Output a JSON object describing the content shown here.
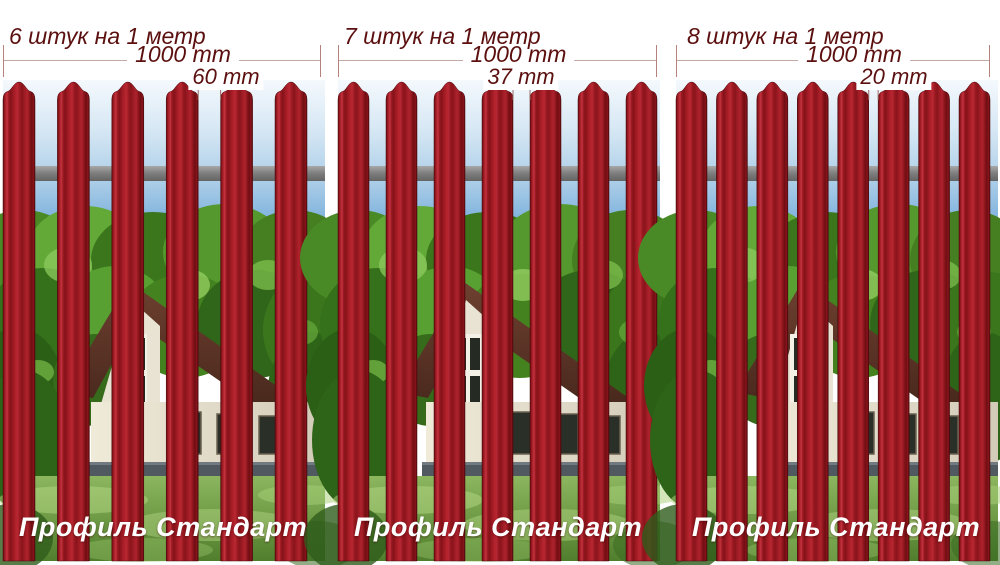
{
  "panels": [
    {
      "pickets_per_meter": 6,
      "count_label": "6 штук на 1 метр",
      "total_width_label": "1000 mm",
      "gap_label": "60 mm",
      "caption": "Профиль Стандарт"
    },
    {
      "pickets_per_meter": 7,
      "count_label": "7 штук на 1 метр",
      "total_width_label": "1000 mm",
      "gap_label": "37 mm",
      "caption": "Профиль Стандарт"
    },
    {
      "pickets_per_meter": 8,
      "count_label": "8 штук на 1 метр",
      "total_width_label": "1000 mm",
      "gap_label": "20 mm",
      "caption": "Профиль Стандарт"
    }
  ],
  "colors": {
    "picket_red": "#9c1a22",
    "annotation_text": "#5b100f",
    "dimension_line": "#c3aba4",
    "rail_gray": "#7d7d7d",
    "sky_blue": "#5e9ed5",
    "grass_green": "#6f9c45",
    "caption_text": "#ffffff"
  }
}
